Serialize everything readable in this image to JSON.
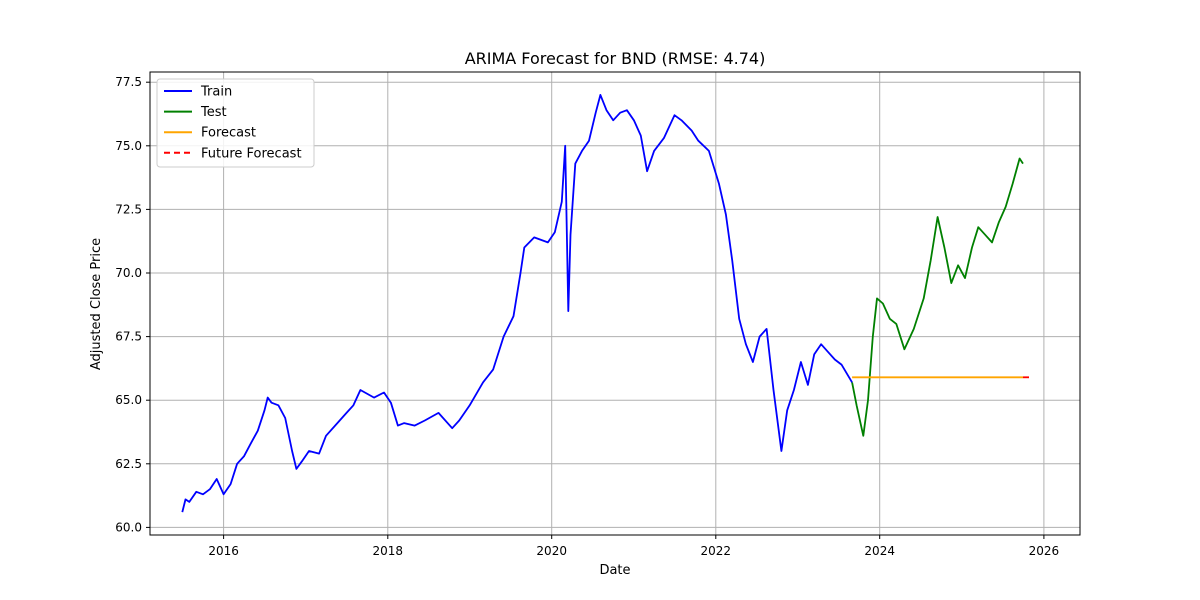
{
  "chart_data": {
    "type": "line",
    "title": "ARIMA Forecast for BND (RMSE: 4.74)",
    "xlabel": "Date",
    "ylabel": "Adjusted Close Price",
    "xlim": [
      "2015-02-07",
      "2026-06-11"
    ],
    "ylim": [
      59.7,
      77.9
    ],
    "grid": true,
    "legend_position": "top-left",
    "x_ticks": [
      "2016-01-01",
      "2018-01-01",
      "2020-01-01",
      "2022-01-01",
      "2024-01-01",
      "2026-01-01"
    ],
    "x_tick_labels": [
      "2016",
      "2018",
      "2020",
      "2022",
      "2024",
      "2026"
    ],
    "y_ticks": [
      60.0,
      62.5,
      65.0,
      67.5,
      70.0,
      72.5,
      75.0,
      77.5
    ],
    "y_tick_labels": [
      "60.0",
      "62.5",
      "65.0",
      "67.5",
      "70.0",
      "72.5",
      "75.0",
      "77.5"
    ],
    "series": [
      {
        "name": "Train",
        "color": "#0000ff",
        "style": "solid",
        "points": [
          [
            "2015-07-01",
            60.6
          ],
          [
            "2015-07-15",
            61.1
          ],
          [
            "2015-08-01",
            61.0
          ],
          [
            "2015-09-01",
            61.4
          ],
          [
            "2015-10-01",
            61.3
          ],
          [
            "2015-11-01",
            61.5
          ],
          [
            "2015-12-01",
            61.9
          ],
          [
            "2016-01-01",
            61.3
          ],
          [
            "2016-02-01",
            61.7
          ],
          [
            "2016-03-01",
            62.5
          ],
          [
            "2016-04-01",
            62.8
          ],
          [
            "2016-05-01",
            63.3
          ],
          [
            "2016-06-01",
            63.8
          ],
          [
            "2016-07-01",
            64.6
          ],
          [
            "2016-07-15",
            65.1
          ],
          [
            "2016-08-01",
            64.9
          ],
          [
            "2016-09-01",
            64.8
          ],
          [
            "2016-10-01",
            64.3
          ],
          [
            "2016-11-01",
            63.0
          ],
          [
            "2016-11-20",
            62.3
          ],
          [
            "2016-12-15",
            62.6
          ],
          [
            "2017-01-15",
            63.0
          ],
          [
            "2017-03-01",
            62.9
          ],
          [
            "2017-04-01",
            63.6
          ],
          [
            "2017-06-01",
            64.2
          ],
          [
            "2017-07-01",
            64.5
          ],
          [
            "2017-08-01",
            64.8
          ],
          [
            "2017-09-01",
            65.4
          ],
          [
            "2017-11-01",
            65.1
          ],
          [
            "2017-12-15",
            65.3
          ],
          [
            "2018-01-15",
            64.9
          ],
          [
            "2018-02-15",
            64.0
          ],
          [
            "2018-03-15",
            64.1
          ],
          [
            "2018-05-01",
            64.0
          ],
          [
            "2018-06-15",
            64.2
          ],
          [
            "2018-08-15",
            64.5
          ],
          [
            "2018-10-15",
            63.9
          ],
          [
            "2018-11-15",
            64.2
          ],
          [
            "2019-01-01",
            64.8
          ],
          [
            "2019-03-01",
            65.7
          ],
          [
            "2019-04-15",
            66.2
          ],
          [
            "2019-06-01",
            67.5
          ],
          [
            "2019-07-15",
            68.3
          ],
          [
            "2019-08-15",
            70.0
          ],
          [
            "2019-09-01",
            71.0
          ],
          [
            "2019-10-15",
            71.4
          ],
          [
            "2019-12-15",
            71.2
          ],
          [
            "2020-01-15",
            71.6
          ],
          [
            "2020-02-15",
            72.8
          ],
          [
            "2020-03-01",
            75.0
          ],
          [
            "2020-03-15",
            68.5
          ],
          [
            "2020-03-25",
            71.5
          ],
          [
            "2020-04-15",
            74.3
          ],
          [
            "2020-05-15",
            74.8
          ],
          [
            "2020-06-15",
            75.2
          ],
          [
            "2020-07-15",
            76.3
          ],
          [
            "2020-08-05",
            77.0
          ],
          [
            "2020-09-01",
            76.4
          ],
          [
            "2020-10-01",
            76.0
          ],
          [
            "2020-11-01",
            76.3
          ],
          [
            "2020-12-01",
            76.4
          ],
          [
            "2021-01-01",
            76.0
          ],
          [
            "2021-02-01",
            75.4
          ],
          [
            "2021-03-01",
            74.0
          ],
          [
            "2021-04-01",
            74.8
          ],
          [
            "2021-05-15",
            75.3
          ],
          [
            "2021-07-01",
            76.2
          ],
          [
            "2021-08-01",
            76.0
          ],
          [
            "2021-09-15",
            75.6
          ],
          [
            "2021-10-15",
            75.2
          ],
          [
            "2021-12-01",
            74.8
          ],
          [
            "2022-01-15",
            73.5
          ],
          [
            "2022-02-15",
            72.3
          ],
          [
            "2022-03-15",
            70.5
          ],
          [
            "2022-04-15",
            68.2
          ],
          [
            "2022-05-15",
            67.2
          ],
          [
            "2022-06-15",
            66.5
          ],
          [
            "2022-07-15",
            67.5
          ],
          [
            "2022-08-15",
            67.8
          ],
          [
            "2022-09-15",
            65.4
          ],
          [
            "2022-10-20",
            63.0
          ],
          [
            "2022-11-15",
            64.6
          ],
          [
            "2022-12-15",
            65.4
          ],
          [
            "2023-01-15",
            66.5
          ],
          [
            "2023-02-15",
            65.6
          ],
          [
            "2023-03-15",
            66.8
          ],
          [
            "2023-04-15",
            67.2
          ],
          [
            "2023-05-15",
            66.9
          ],
          [
            "2023-06-15",
            66.6
          ],
          [
            "2023-07-15",
            66.4
          ],
          [
            "2023-08-31",
            65.7
          ]
        ]
      },
      {
        "name": "Test",
        "color": "#008000",
        "style": "solid",
        "points": [
          [
            "2023-08-31",
            65.7
          ],
          [
            "2023-09-20",
            64.8
          ],
          [
            "2023-10-20",
            63.6
          ],
          [
            "2023-11-10",
            65.0
          ],
          [
            "2023-12-01",
            67.5
          ],
          [
            "2023-12-20",
            69.0
          ],
          [
            "2024-01-15",
            68.8
          ],
          [
            "2024-02-15",
            68.2
          ],
          [
            "2024-03-15",
            68.0
          ],
          [
            "2024-04-20",
            67.0
          ],
          [
            "2024-06-01",
            67.8
          ],
          [
            "2024-07-15",
            69.0
          ],
          [
            "2024-08-15",
            70.5
          ],
          [
            "2024-09-15",
            72.2
          ],
          [
            "2024-10-15",
            71.0
          ],
          [
            "2024-11-15",
            69.6
          ],
          [
            "2024-12-15",
            70.3
          ],
          [
            "2025-01-15",
            69.8
          ],
          [
            "2025-02-15",
            71.0
          ],
          [
            "2025-03-15",
            71.8
          ],
          [
            "2025-04-15",
            71.5
          ],
          [
            "2025-05-15",
            71.2
          ],
          [
            "2025-06-15",
            72.0
          ],
          [
            "2025-07-15",
            72.6
          ],
          [
            "2025-08-15",
            73.5
          ],
          [
            "2025-09-15",
            74.5
          ],
          [
            "2025-09-30",
            74.3
          ]
        ]
      },
      {
        "name": "Forecast",
        "color": "#ffa500",
        "style": "solid",
        "points": [
          [
            "2023-08-31",
            65.9
          ],
          [
            "2025-09-30",
            65.9
          ]
        ]
      },
      {
        "name": "Future Forecast",
        "color": "#ff0000",
        "style": "dashed",
        "points": [
          [
            "2025-09-30",
            65.9
          ],
          [
            "2025-11-10",
            65.9
          ]
        ]
      }
    ]
  }
}
